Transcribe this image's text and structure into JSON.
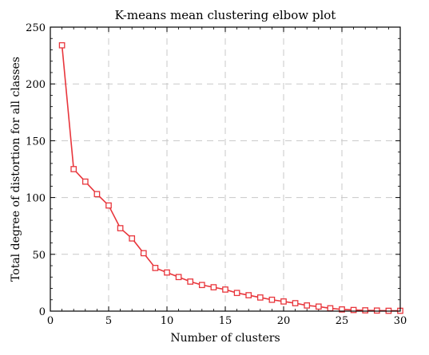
{
  "chart_data": {
    "type": "line",
    "title": "K-means mean clustering elbow plot",
    "xlabel": "Number of clusters",
    "ylabel": "Total degree of distortion for all classes",
    "xlim": [
      0,
      30
    ],
    "ylim": [
      0,
      250
    ],
    "xticks": [
      0,
      5,
      10,
      15,
      20,
      25,
      30
    ],
    "yticks": [
      0,
      50,
      100,
      150,
      200,
      250
    ],
    "grid": true,
    "grid_style": "dashed",
    "line_color": "#e8363c",
    "marker": "open-square",
    "series": [
      {
        "x": [
          1,
          2,
          3,
          4,
          5,
          6,
          7,
          8,
          9,
          10,
          11,
          12,
          13,
          14,
          15,
          16,
          17,
          18,
          19,
          20,
          21,
          22,
          23,
          24,
          25,
          26,
          27,
          28,
          29,
          30
        ],
        "values": [
          234,
          125,
          114,
          103,
          93,
          73,
          64,
          51,
          38,
          34,
          30,
          26,
          23,
          21,
          19,
          16,
          14,
          12,
          10,
          8.5,
          7,
          5,
          4,
          2.5,
          1.5,
          1,
          0.7,
          0.5,
          0.3,
          0.3
        ]
      }
    ]
  }
}
